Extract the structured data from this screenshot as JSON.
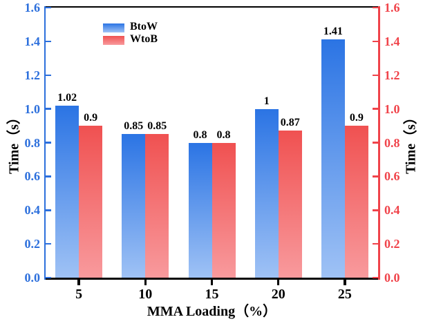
{
  "chart_data": {
    "type": "bar",
    "title": "",
    "xlabel": "MMA Loading（%）",
    "ylabel_left": "Time（s）",
    "ylabel_right": "Time（s）",
    "categories": [
      "5",
      "10",
      "15",
      "20",
      "25"
    ],
    "series": [
      {
        "name": "BtoW",
        "values": [
          1.02,
          0.85,
          0.8,
          1.0,
          1.41
        ],
        "labels": [
          "1.02",
          "0.85",
          "0.8",
          "1",
          "1.41"
        ],
        "color_top": "#2B74E4",
        "color_bottom": "#9FC2F5"
      },
      {
        "name": "WtoB",
        "values": [
          0.9,
          0.85,
          0.8,
          0.87,
          0.9
        ],
        "labels": [
          "0.9",
          "0.85",
          "0.8",
          "0.87",
          "0.9"
        ],
        "color_top": "#F05151",
        "color_bottom": "#F89A9D"
      }
    ],
    "ylim": [
      0,
      1.6
    ],
    "ytick_step": 0.2,
    "yticks": [
      "0.0",
      "0.2",
      "0.4",
      "0.6",
      "0.8",
      "1.0",
      "1.2",
      "1.4",
      "1.6"
    ],
    "grid": false,
    "legend_position": "top-left",
    "axes": {
      "left_color": "#2C6FDC",
      "right_color": "#F0434A",
      "top_color": "#000000",
      "bottom_color": "#000000",
      "tick_label_color_left": "#2C6FDC",
      "tick_label_color_right": "#F0434A",
      "x_tick_label_color": "#000000"
    }
  }
}
